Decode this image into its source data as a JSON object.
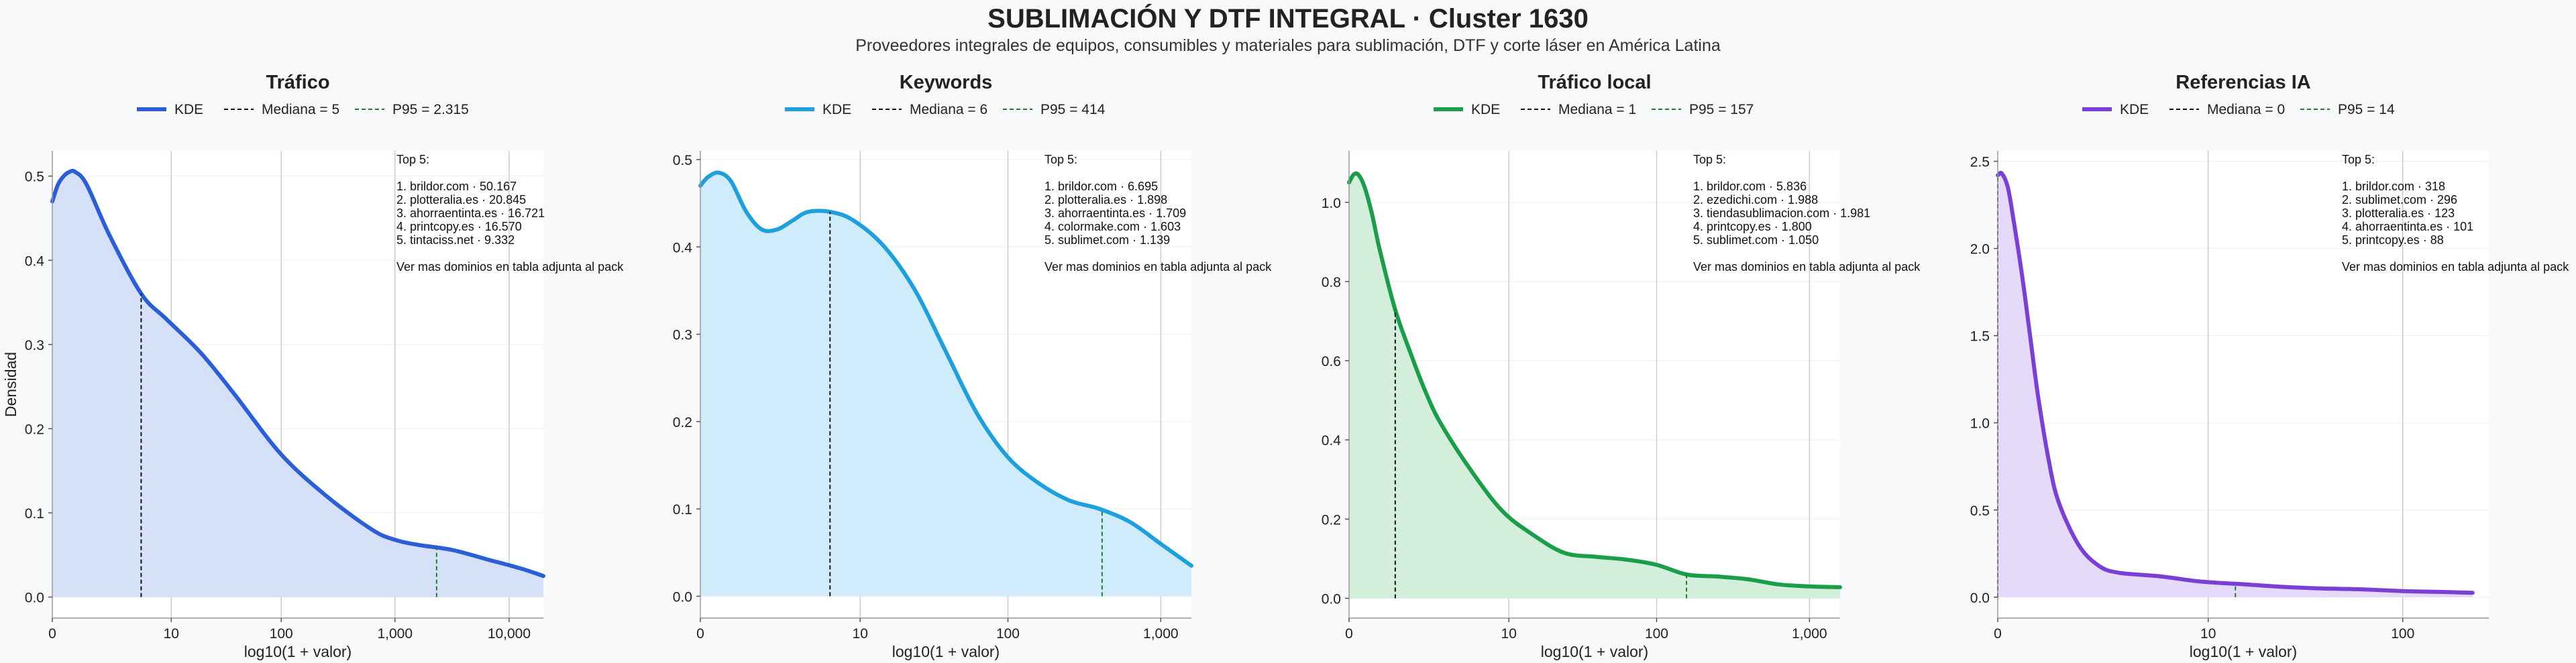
{
  "figure": {
    "title": "SUBLIMACIÓN Y DTF INTEGRAL · Cluster 1630",
    "subtitle": "Proveedores integrales de equipos, consumibles y materiales para sublimación, DTF y corte láser en América Latina"
  },
  "colors": {
    "background": "#f8f9fb",
    "grid": "#cccccc",
    "median": "#111111",
    "p95": "#1a7f2a"
  },
  "chart_data": [
    {
      "type": "area",
      "title": "Tráfico",
      "xlabel": "log10(1 + valor)",
      "ylabel": "Densidad",
      "color": "#2a5fd8",
      "fill": "#d6e0f8",
      "xlim": [
        0,
        4.3
      ],
      "ylim": [
        -0.025,
        0.53
      ],
      "xticks": [
        {
          "v": 0,
          "label": "0"
        },
        {
          "v": 1.0414,
          "label": "10"
        },
        {
          "v": 2.0043,
          "label": "100"
        },
        {
          "v": 3.0004,
          "label": "1,000"
        },
        {
          "v": 4.0,
          "label": "10,000"
        }
      ],
      "yticks": [
        {
          "v": 0.0,
          "label": "0.0"
        },
        {
          "v": 0.1,
          "label": "0.1"
        },
        {
          "v": 0.2,
          "label": "0.2"
        },
        {
          "v": 0.3,
          "label": "0.3"
        },
        {
          "v": 0.4,
          "label": "0.4"
        },
        {
          "v": 0.5,
          "label": "0.5"
        }
      ],
      "gridlines": [
        1.0414,
        2.0043,
        3.0004,
        4.0
      ],
      "grid": true,
      "x": [
        0,
        0.05,
        0.1,
        0.15,
        0.2,
        0.3,
        0.5,
        0.78,
        1.0,
        1.3,
        1.6,
        2.0,
        2.4,
        2.8,
        3.0,
        3.2,
        3.5,
        3.8,
        4.1,
        4.3
      ],
      "y": [
        0.47,
        0.49,
        0.5,
        0.505,
        0.505,
        0.49,
        0.43,
        0.36,
        0.33,
        0.29,
        0.24,
        0.17,
        0.12,
        0.08,
        0.068,
        0.062,
        0.056,
        0.045,
        0.034,
        0.025
      ],
      "median": {
        "label": "Mediana = 5",
        "x": 0.778
      },
      "p95": {
        "label": "P95 = 2.315",
        "x": 3.365
      },
      "legend": {
        "kde_label": "KDE",
        "position": "top"
      },
      "top5": {
        "header": "Top 5:",
        "items": [
          "1. brildor.com · 50.167",
          "2. plotteralia.es · 20.845",
          "3. ahorraentinta.es · 16.721",
          "4. printcopy.es · 16.570",
          "5. tintaciss.net · 9.332"
        ],
        "footer": "Ver mas dominios en tabla adjunta al pack"
      }
    },
    {
      "type": "area",
      "title": "Keywords",
      "xlabel": "log10(1 + valor)",
      "ylabel": "",
      "color": "#1ea0dc",
      "fill": "#d0ecfa",
      "xlim": [
        0,
        3.2
      ],
      "ylim": [
        -0.025,
        0.51
      ],
      "xticks": [
        {
          "v": 0,
          "label": "0"
        },
        {
          "v": 1.0414,
          "label": "10"
        },
        {
          "v": 2.0043,
          "label": "100"
        },
        {
          "v": 3.0004,
          "label": "1,000"
        }
      ],
      "yticks": [
        {
          "v": 0.0,
          "label": "0.0"
        },
        {
          "v": 0.1,
          "label": "0.1"
        },
        {
          "v": 0.2,
          "label": "0.2"
        },
        {
          "v": 0.3,
          "label": "0.3"
        },
        {
          "v": 0.4,
          "label": "0.4"
        },
        {
          "v": 0.5,
          "label": "0.5"
        }
      ],
      "gridlines": [
        1.0414,
        2.0043,
        3.0004
      ],
      "grid": true,
      "x": [
        0,
        0.05,
        0.12,
        0.2,
        0.3,
        0.4,
        0.5,
        0.6,
        0.7,
        0.85,
        1.0,
        1.2,
        1.4,
        1.6,
        1.8,
        2.0,
        2.2,
        2.4,
        2.6,
        2.8,
        3.0,
        3.2
      ],
      "y": [
        0.47,
        0.48,
        0.485,
        0.475,
        0.44,
        0.42,
        0.42,
        0.43,
        0.44,
        0.44,
        0.43,
        0.4,
        0.35,
        0.28,
        0.21,
        0.16,
        0.13,
        0.11,
        0.1,
        0.085,
        0.06,
        0.035
      ],
      "median": {
        "label": "Mediana = 6",
        "x": 0.845
      },
      "p95": {
        "label": "P95 = 414",
        "x": 2.618
      },
      "legend": {
        "kde_label": "KDE",
        "position": "top"
      },
      "top5": {
        "header": "Top 5:",
        "items": [
          "1. brildor.com · 6.695",
          "2. plotteralia.es · 1.898",
          "3. ahorraentinta.es · 1.709",
          "4. colormake.com · 1.603",
          "5. sublimet.com · 1.139"
        ],
        "footer": "Ver mas dominios en tabla adjunta al pack"
      }
    },
    {
      "type": "area",
      "title": "Tráfico local",
      "xlabel": "log10(1 + valor)",
      "ylabel": "",
      "color": "#1a9e4a",
      "fill": "#d3eedb",
      "xlim": [
        0,
        3.2
      ],
      "ylim": [
        -0.05,
        1.13
      ],
      "xticks": [
        {
          "v": 0,
          "label": "0"
        },
        {
          "v": 1.0414,
          "label": "10"
        },
        {
          "v": 2.0043,
          "label": "100"
        },
        {
          "v": 3.0004,
          "label": "1,000"
        }
      ],
      "yticks": [
        {
          "v": 0.0,
          "label": "0.0"
        },
        {
          "v": 0.2,
          "label": "0.2"
        },
        {
          "v": 0.4,
          "label": "0.4"
        },
        {
          "v": 0.6,
          "label": "0.6"
        },
        {
          "v": 0.8,
          "label": "0.8"
        },
        {
          "v": 1.0,
          "label": "1.0"
        }
      ],
      "gridlines": [
        1.0414,
        2.0043,
        3.0004
      ],
      "grid": true,
      "x": [
        0,
        0.03,
        0.06,
        0.1,
        0.15,
        0.2,
        0.3,
        0.4,
        0.5,
        0.6,
        0.8,
        1.0,
        1.2,
        1.4,
        1.6,
        1.8,
        2.0,
        2.2,
        2.4,
        2.6,
        2.8,
        3.0,
        3.2
      ],
      "y": [
        1.05,
        1.07,
        1.07,
        1.04,
        0.97,
        0.88,
        0.73,
        0.62,
        0.52,
        0.44,
        0.32,
        0.22,
        0.16,
        0.115,
        0.105,
        0.098,
        0.085,
        0.06,
        0.055,
        0.048,
        0.035,
        0.03,
        0.028
      ],
      "median": {
        "label": "Mediana = 1",
        "x": 0.301
      },
      "p95": {
        "label": "P95 = 157",
        "x": 2.199
      },
      "legend": {
        "kde_label": "KDE",
        "position": "top"
      },
      "top5": {
        "header": "Top 5:",
        "items": [
          "1. brildor.com · 5.836",
          "2. ezedichi.com · 1.988",
          "3. tiendasublimacion.com · 1.981",
          "4. printcopy.es · 1.800",
          "5. sublimet.com · 1.050"
        ],
        "footer": "Ver mas dominios en tabla adjunta al pack"
      }
    },
    {
      "type": "area",
      "title": "Referencias IA",
      "xlabel": "log10(1 + valor)",
      "ylabel": "",
      "color": "#7a3fd6",
      "fill": "#e6dafa",
      "xlim": [
        0,
        2.43
      ],
      "ylim": [
        -0.12,
        2.56
      ],
      "xticks": [
        {
          "v": 0,
          "label": "0"
        },
        {
          "v": 1.0414,
          "label": "10"
        },
        {
          "v": 2.0043,
          "label": "100"
        }
      ],
      "yticks": [
        {
          "v": 0.0,
          "label": "0.0"
        },
        {
          "v": 0.5,
          "label": "0.5"
        },
        {
          "v": 1.0,
          "label": "1.0"
        },
        {
          "v": 1.5,
          "label": "1.5"
        },
        {
          "v": 2.0,
          "label": "2.0"
        },
        {
          "v": 2.5,
          "label": "2.5"
        }
      ],
      "gridlines": [
        1.0414,
        2.0043
      ],
      "grid": true,
      "x": [
        0,
        0.02,
        0.05,
        0.08,
        0.12,
        0.16,
        0.2,
        0.25,
        0.3,
        0.4,
        0.5,
        0.6,
        0.8,
        1.0,
        1.2,
        1.4,
        1.6,
        1.8,
        2.0,
        2.2,
        2.35
      ],
      "y": [
        2.42,
        2.43,
        2.35,
        2.15,
        1.85,
        1.5,
        1.15,
        0.8,
        0.55,
        0.3,
        0.18,
        0.14,
        0.12,
        0.09,
        0.075,
        0.06,
        0.05,
        0.045,
        0.035,
        0.03,
        0.025
      ],
      "median": {
        "label": "Mediana = 0",
        "x": 0.0
      },
      "p95": {
        "label": "P95 = 14",
        "x": 1.176
      },
      "legend": {
        "kde_label": "KDE",
        "position": "top"
      },
      "top5": {
        "header": "Top 5:",
        "items": [
          "1. brildor.com · 318",
          "2. sublimet.com · 296",
          "3. plotteralia.es · 123",
          "4. ahorraentinta.es · 101",
          "5. printcopy.es · 88"
        ],
        "footer": "Ver mas dominios en tabla adjunta al pack"
      }
    }
  ]
}
